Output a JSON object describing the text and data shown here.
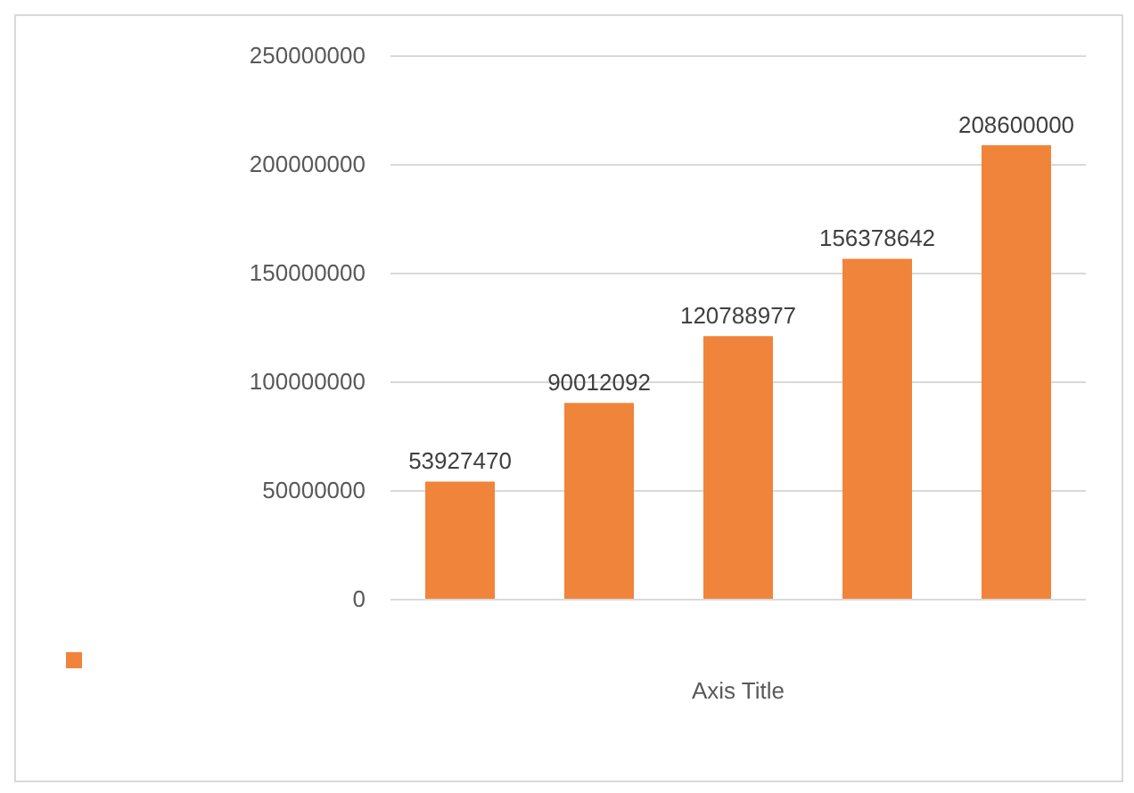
{
  "chart_data": {
    "type": "bar",
    "xlabel": "Axis Title",
    "categories": [
      null,
      null,
      null,
      null,
      null
    ],
    "series": [
      {
        "color": "#f0843a",
        "values": [
          53927470,
          90012092,
          120788977,
          156378642,
          208600000
        ]
      }
    ],
    "ylim": [
      0,
      250000000
    ],
    "yticks": [
      0,
      50000000,
      100000000,
      150000000,
      200000000,
      250000000
    ],
    "grid": "y",
    "data_labels": true
  }
}
